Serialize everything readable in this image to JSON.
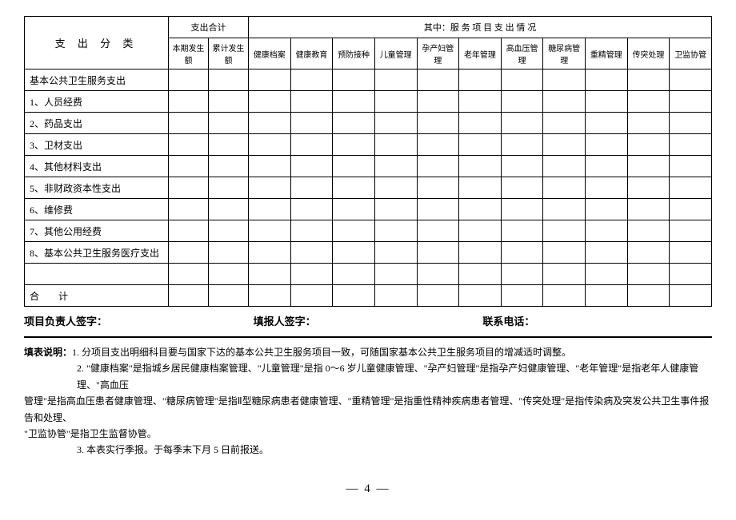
{
  "headers": {
    "category": "支 出 分 类",
    "total": "支出合计",
    "service_title": "其中：服 务 项 目 支 出 情 况",
    "current": "本期发生额",
    "cumulative": "累计发生额",
    "svc": [
      "健康档案",
      "健康教育",
      "预防接种",
      "儿童管理",
      "孕产妇管理",
      "老年管理",
      "高血压管理",
      "糖尿病管理",
      "重精管理",
      "传突处理",
      "卫监协管"
    ]
  },
  "rows": [
    "基本公共卫生服务支出",
    "1、人员经费",
    "2、药品支出",
    "3、卫材支出",
    "4、其他材料支出",
    "5、非财政资本性支出",
    "6、维修费",
    "7、其他公用经费",
    "8、基本公共卫生服务医疗支出",
    "",
    "合　　计"
  ],
  "sign": {
    "leader": "项目负责人签字：",
    "reporter": "填报人签字：",
    "phone": "联系电话："
  },
  "notes": {
    "label": "填表说明：",
    "n1": "1. 分项目支出明细科目要与国家下达的基本公共卫生服务项目一致，可随国家基本公共卫生服务项目的增减适时调整。",
    "n2a": "2. \"健康档案\"是指城乡居民健康档案管理、\"儿童管理\"是指 0～6 岁儿童健康管理、\"孕产妇管理\"是指孕产妇健康管理、\"老年管理\"是指老年人健康管理、\"高血压",
    "n2b": "管理\"是指高血压患者健康管理、\"糖尿病管理\"是指Ⅱ型糖尿病患者健康管理、\"重精管理\"是指重性精神疾病患者管理、\"传突处理\"是指传染病及突发公共卫生事件报告和处理、",
    "n2c": "\"卫监协管\"是指卫生监督协管。",
    "n3": "3. 本表实行季报。于每季末下月 5 日前报送。"
  },
  "pageNum": "— 4 —"
}
